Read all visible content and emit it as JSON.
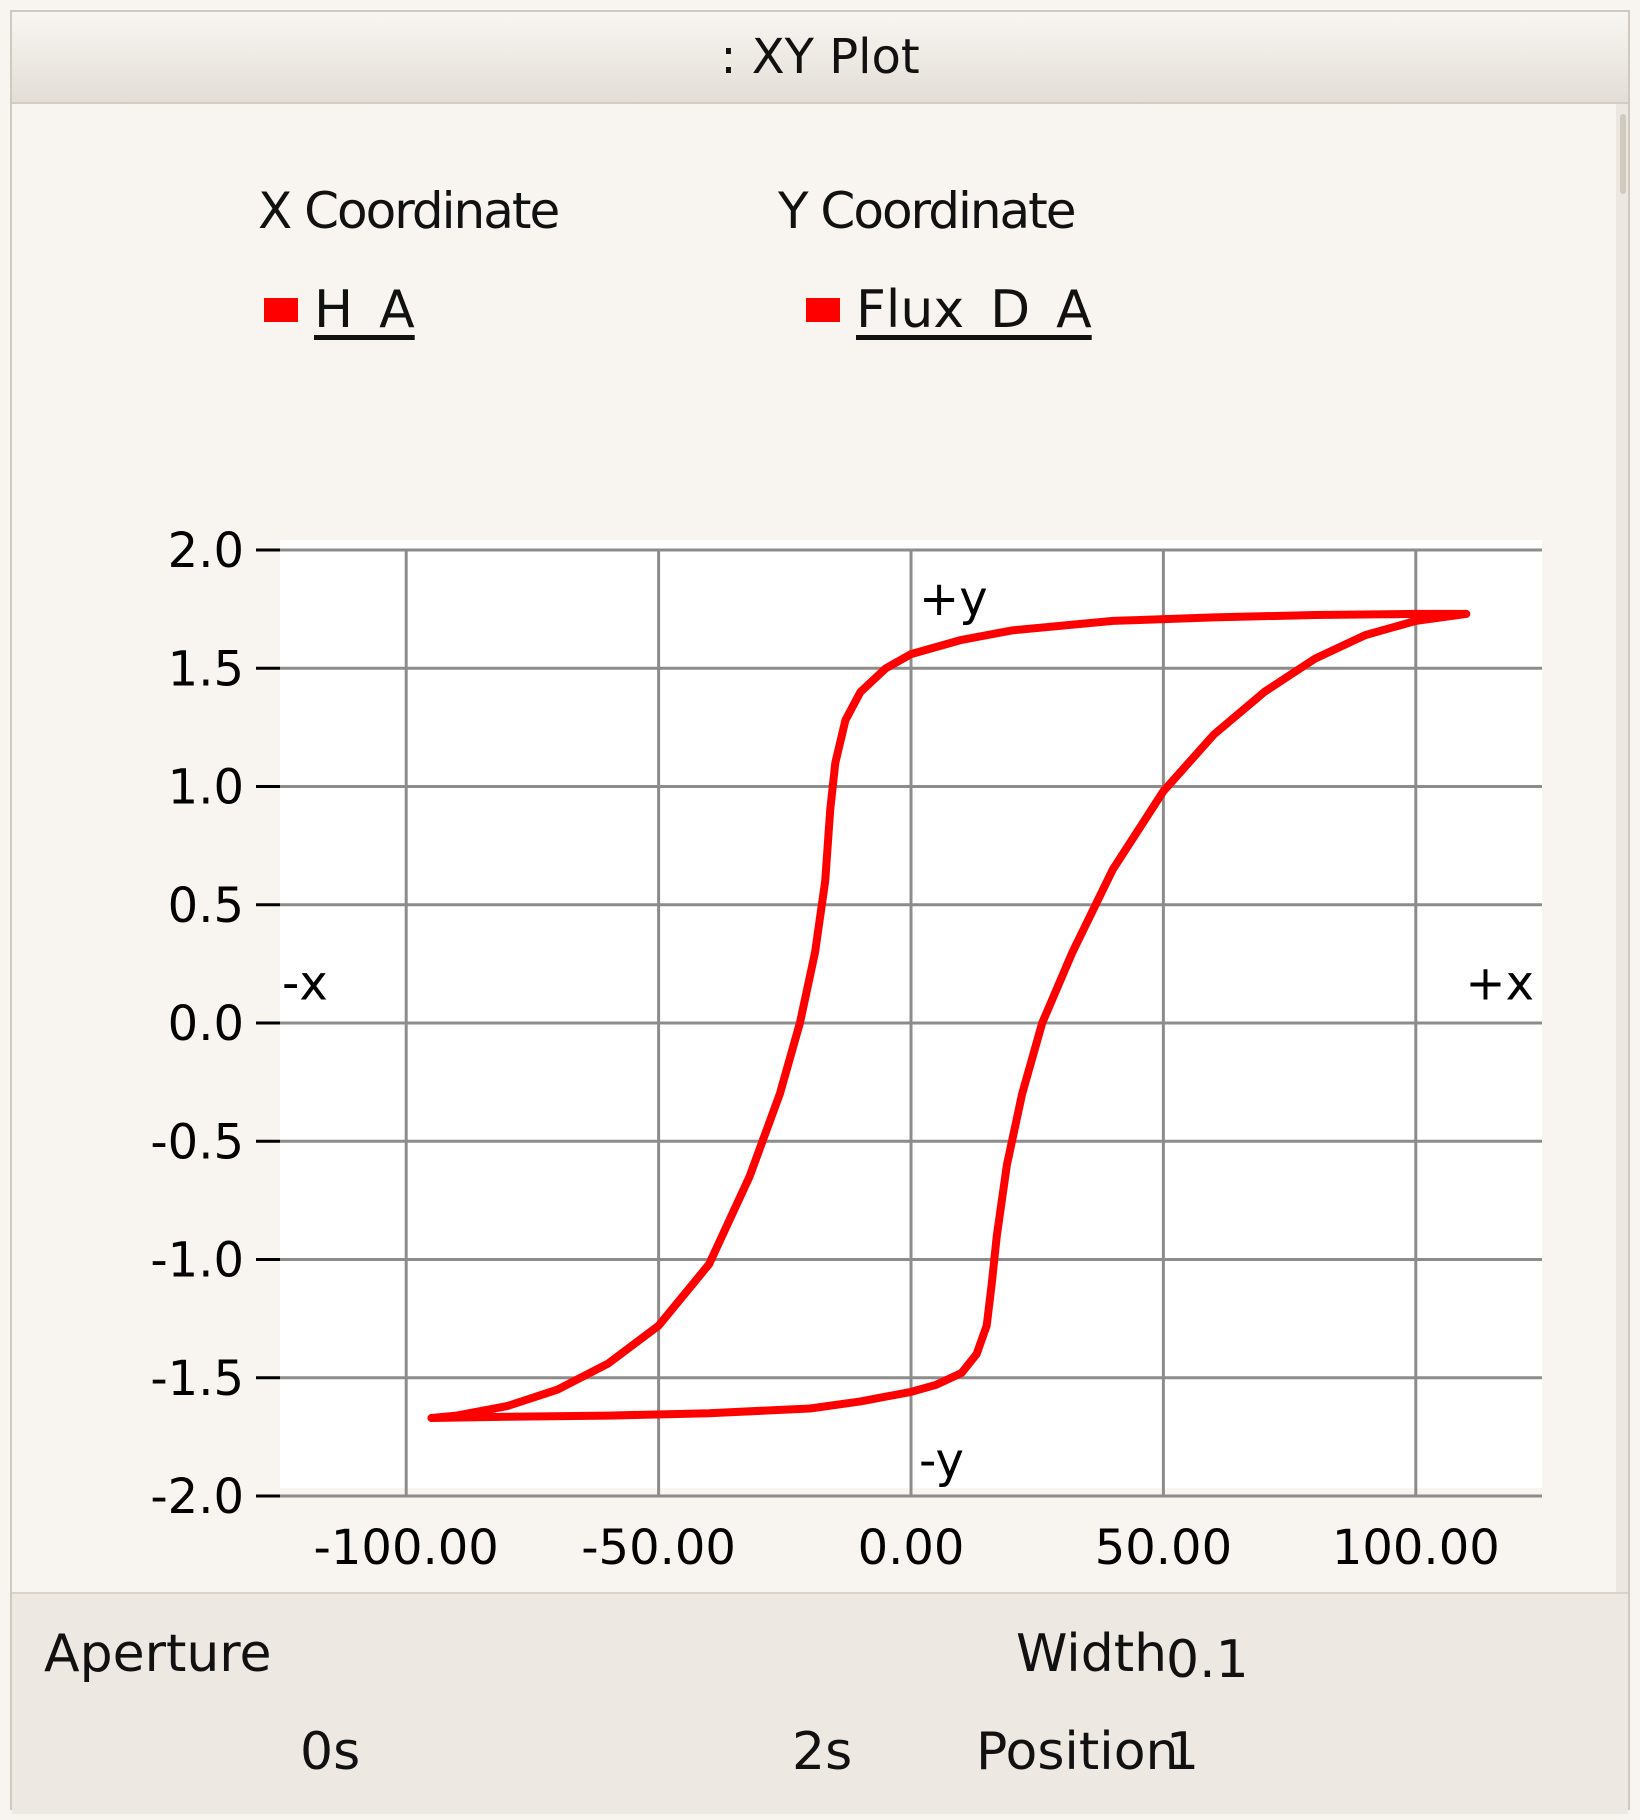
{
  "window": {
    "title": ": XY Plot"
  },
  "legend": {
    "x_header": "X Coordinate",
    "y_header": "Y Coordinate",
    "x_signal": "H_A",
    "y_signal": "Flux_D_A",
    "swatch_color": "#ff0000"
  },
  "quadrant_labels": {
    "plus_y": "+y",
    "minus_y": "-y",
    "plus_x": "+x",
    "minus_x": "-x"
  },
  "bottom": {
    "aperture_label": "Aperture",
    "start_time": "0s",
    "end_time": "2s",
    "width_label": "Width",
    "width_value": "0.1",
    "position_label": "Position",
    "position_value": "1"
  },
  "chart_data": {
    "type": "line",
    "title": "",
    "xlabel": "",
    "ylabel": "",
    "xlim": [
      -125,
      125
    ],
    "ylim": [
      -2.0,
      2.0
    ],
    "x_ticks": [
      -100,
      -50,
      0,
      50,
      100
    ],
    "x_tick_labels": [
      "-100.00",
      "-50.00",
      "0.00",
      "50.00",
      "100.00"
    ],
    "y_ticks": [
      2.0,
      1.5,
      1.0,
      0.5,
      0.0,
      -0.5,
      -1.0,
      -1.5,
      -2.0
    ],
    "y_tick_labels": [
      "2.0",
      "1.5",
      "1.0",
      "0.5",
      "0.0",
      "-0.5",
      "-1.0",
      "-1.5",
      "-2.0"
    ],
    "grid": true,
    "line_color": "#ff0000",
    "series": [
      {
        "name": "Flux_D_A vs H_A",
        "x": [
          110,
          100,
          90,
          80,
          70,
          60,
          50,
          40,
          32,
          26,
          22,
          19,
          17,
          16,
          15,
          13,
          10,
          5,
          0,
          -10,
          -20,
          -40,
          -60,
          -80,
          -95,
          -90,
          -80,
          -70,
          -60,
          -50,
          -40,
          -32,
          -26,
          -22,
          -19,
          -17,
          -16,
          -15,
          -13,
          -10,
          -5,
          0,
          10,
          20,
          40,
          60,
          80,
          100,
          110
        ],
        "y": [
          1.73,
          1.7,
          1.64,
          1.54,
          1.4,
          1.22,
          0.98,
          0.65,
          0.3,
          0.0,
          -0.3,
          -0.6,
          -0.9,
          -1.1,
          -1.28,
          -1.4,
          -1.48,
          -1.53,
          -1.56,
          -1.6,
          -1.63,
          -1.65,
          -1.66,
          -1.665,
          -1.67,
          -1.66,
          -1.62,
          -1.55,
          -1.44,
          -1.28,
          -1.02,
          -0.65,
          -0.3,
          0.0,
          0.3,
          0.6,
          0.9,
          1.1,
          1.28,
          1.4,
          1.5,
          1.56,
          1.62,
          1.66,
          1.7,
          1.715,
          1.725,
          1.73,
          1.73
        ]
      }
    ]
  }
}
